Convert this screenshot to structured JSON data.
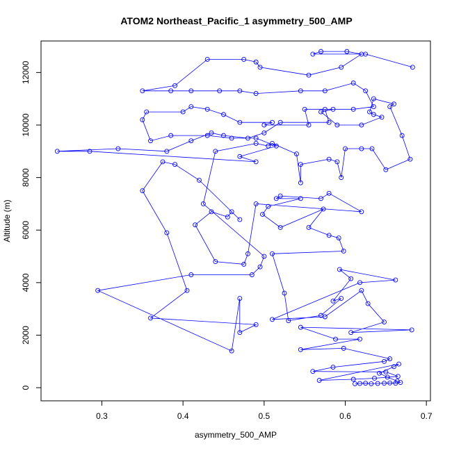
{
  "chart_data": {
    "type": "line",
    "title": "ATOM2 Northeast_Pacific_1 asymmetry_500_AMP",
    "xlabel": "asymmetry_500_AMP",
    "ylabel": "Altitude (m)",
    "xlim": [
      0.225,
      0.705
    ],
    "ylim": [
      -500,
      13200
    ],
    "xticks": [
      0.3,
      0.4,
      0.5,
      0.6,
      0.7
    ],
    "xtick_labels": [
      "0.3",
      "0.4",
      "0.5",
      "0.6",
      "0.7"
    ],
    "yticks": [
      0,
      2000,
      4000,
      6000,
      8000,
      10000,
      12000
    ],
    "ytick_labels": [
      "0",
      "2000",
      "4000",
      "6000",
      "8000",
      "10000",
      "12000"
    ],
    "grid": false,
    "legend": "none",
    "colors": {
      "series": "#0000ff",
      "axis": "#000000"
    },
    "series": [
      {
        "marker": "open-circle",
        "line": true,
        "points": [
          [
            0.612,
            150
          ],
          [
            0.618,
            160
          ],
          [
            0.625,
            170
          ],
          [
            0.632,
            150
          ],
          [
            0.64,
            160
          ],
          [
            0.648,
            170
          ],
          [
            0.655,
            180
          ],
          [
            0.662,
            170
          ],
          [
            0.668,
            200
          ],
          [
            0.664,
            250
          ],
          [
            0.652,
            400
          ],
          [
            0.642,
            550
          ],
          [
            0.66,
            800
          ],
          [
            0.666,
            900
          ],
          [
            0.568,
            280
          ],
          [
            0.61,
            320
          ],
          [
            0.636,
            360
          ],
          [
            0.665,
            430
          ],
          [
            0.65,
            600
          ],
          [
            0.56,
            620
          ],
          [
            0.585,
            780
          ],
          [
            0.648,
            1000
          ],
          [
            0.655,
            1100
          ],
          [
            0.598,
            1500
          ],
          [
            0.545,
            1450
          ],
          [
            0.618,
            1850
          ],
          [
            0.588,
            1850
          ],
          [
            0.545,
            2300
          ],
          [
            0.682,
            2200
          ],
          [
            0.607,
            2100
          ],
          [
            0.648,
            2500
          ],
          [
            0.628,
            3200
          ],
          [
            0.62,
            3700
          ],
          [
            0.575,
            2700
          ],
          [
            0.51,
            2600
          ],
          [
            0.618,
            4000
          ],
          [
            0.662,
            4100
          ],
          [
            0.593,
            4500
          ],
          [
            0.607,
            4150
          ],
          [
            0.585,
            3300
          ],
          [
            0.595,
            3400
          ],
          [
            0.57,
            2750
          ],
          [
            0.53,
            2550
          ],
          [
            0.525,
            3600
          ],
          [
            0.51,
            5100
          ],
          [
            0.598,
            5200
          ],
          [
            0.592,
            5700
          ],
          [
            0.58,
            5800
          ],
          [
            0.555,
            6100
          ],
          [
            0.573,
            6800
          ],
          [
            0.52,
            6100
          ],
          [
            0.498,
            6600
          ],
          [
            0.505,
            6900
          ],
          [
            0.545,
            7200
          ],
          [
            0.515,
            7200
          ],
          [
            0.52,
            7300
          ],
          [
            0.57,
            7200
          ],
          [
            0.58,
            7400
          ],
          [
            0.62,
            6700
          ],
          [
            0.49,
            7000
          ],
          [
            0.48,
            5100
          ],
          [
            0.475,
            4700
          ],
          [
            0.44,
            4800
          ],
          [
            0.415,
            6200
          ],
          [
            0.435,
            6700
          ],
          [
            0.455,
            6500
          ],
          [
            0.46,
            6700
          ],
          [
            0.47,
            6400
          ],
          [
            0.42,
            7900
          ],
          [
            0.39,
            8500
          ],
          [
            0.375,
            8600
          ],
          [
            0.35,
            7500
          ],
          [
            0.38,
            5900
          ],
          [
            0.405,
            3700
          ],
          [
            0.36,
            2650
          ],
          [
            0.49,
            2400
          ],
          [
            0.47,
            2100
          ],
          [
            0.47,
            3400
          ],
          [
            0.46,
            1400
          ],
          [
            0.295,
            3700
          ],
          [
            0.41,
            4300
          ],
          [
            0.485,
            4300
          ],
          [
            0.495,
            4600
          ],
          [
            0.5,
            5000
          ],
          [
            0.425,
            7000
          ],
          [
            0.44,
            9000
          ],
          [
            0.49,
            9300
          ],
          [
            0.505,
            9200
          ],
          [
            0.51,
            9300
          ],
          [
            0.54,
            8900
          ],
          [
            0.545,
            7800
          ],
          [
            0.545,
            8500
          ],
          [
            0.58,
            8700
          ],
          [
            0.59,
            8600
          ],
          [
            0.595,
            8000
          ],
          [
            0.6,
            9100
          ],
          [
            0.62,
            9100
          ],
          [
            0.633,
            9100
          ],
          [
            0.65,
            8300
          ],
          [
            0.68,
            8700
          ],
          [
            0.67,
            9600
          ],
          [
            0.655,
            10700
          ],
          [
            0.66,
            10800
          ],
          [
            0.635,
            11000
          ],
          [
            0.63,
            10500
          ],
          [
            0.635,
            10400
          ],
          [
            0.645,
            10300
          ],
          [
            0.62,
            10000
          ],
          [
            0.59,
            10000
          ],
          [
            0.57,
            10500
          ],
          [
            0.585,
            10600
          ],
          [
            0.55,
            10600
          ],
          [
            0.555,
            10000
          ],
          [
            0.5,
            10000
          ],
          [
            0.51,
            10100
          ],
          [
            0.47,
            10100
          ],
          [
            0.45,
            10400
          ],
          [
            0.43,
            10600
          ],
          [
            0.41,
            10700
          ],
          [
            0.4,
            10500
          ],
          [
            0.355,
            10500
          ],
          [
            0.35,
            10200
          ],
          [
            0.36,
            9400
          ],
          [
            0.385,
            9600
          ],
          [
            0.43,
            9600
          ],
          [
            0.46,
            9500
          ],
          [
            0.49,
            9500
          ],
          [
            0.515,
            9200
          ],
          [
            0.47,
            8800
          ],
          [
            0.49,
            8600
          ],
          [
            0.285,
            9000
          ],
          [
            0.245,
            9000
          ],
          [
            0.32,
            9100
          ],
          [
            0.38,
            9000
          ],
          [
            0.41,
            9400
          ],
          [
            0.435,
            9700
          ],
          [
            0.45,
            9600
          ],
          [
            0.48,
            9500
          ],
          [
            0.5,
            9700
          ],
          [
            0.52,
            10100
          ],
          [
            0.58,
            10100
          ],
          [
            0.575,
            10600
          ],
          [
            0.61,
            10600
          ],
          [
            0.635,
            10700
          ],
          [
            0.625,
            11300
          ],
          [
            0.61,
            11600
          ],
          [
            0.575,
            11300
          ],
          [
            0.545,
            11300
          ],
          [
            0.49,
            11200
          ],
          [
            0.47,
            11300
          ],
          [
            0.445,
            11300
          ],
          [
            0.41,
            11300
          ],
          [
            0.385,
            11300
          ],
          [
            0.35,
            11300
          ],
          [
            0.39,
            11500
          ],
          [
            0.43,
            12500
          ],
          [
            0.475,
            12500
          ],
          [
            0.49,
            12400
          ],
          [
            0.495,
            12200
          ],
          [
            0.555,
            11900
          ],
          [
            0.595,
            12200
          ],
          [
            0.62,
            12700
          ],
          [
            0.602,
            12800
          ],
          [
            0.57,
            12800
          ],
          [
            0.56,
            12700
          ],
          [
            0.625,
            12700
          ],
          [
            0.683,
            12200
          ]
        ]
      }
    ]
  }
}
